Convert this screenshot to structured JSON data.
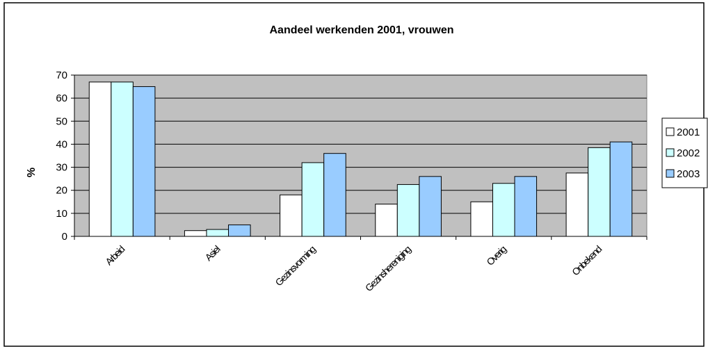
{
  "chart_data": {
    "type": "bar",
    "title": "Aandeel werkenden 2001, vrouwen",
    "y_label": "%",
    "categories": [
      "Arbeid",
      "Asiel",
      "Gezinsvorming",
      "Gezinshereniging",
      "Overig",
      "Onbekend"
    ],
    "series": [
      {
        "name": "2001",
        "color": "#ffffff",
        "values": [
          67,
          2.5,
          18,
          14,
          15,
          27.5
        ]
      },
      {
        "name": "2002",
        "color": "#ccffff",
        "values": [
          67,
          3,
          32,
          22.5,
          23,
          38.5
        ]
      },
      {
        "name": "2003",
        "color": "#99ccff",
        "values": [
          65,
          5,
          36,
          26,
          26,
          41
        ]
      }
    ],
    "ylim": [
      0,
      70
    ],
    "yticks": [
      0,
      10,
      20,
      30,
      40,
      50,
      60,
      70
    ],
    "grid": true,
    "plot_background": "#c0c0c0",
    "legend": "right"
  }
}
